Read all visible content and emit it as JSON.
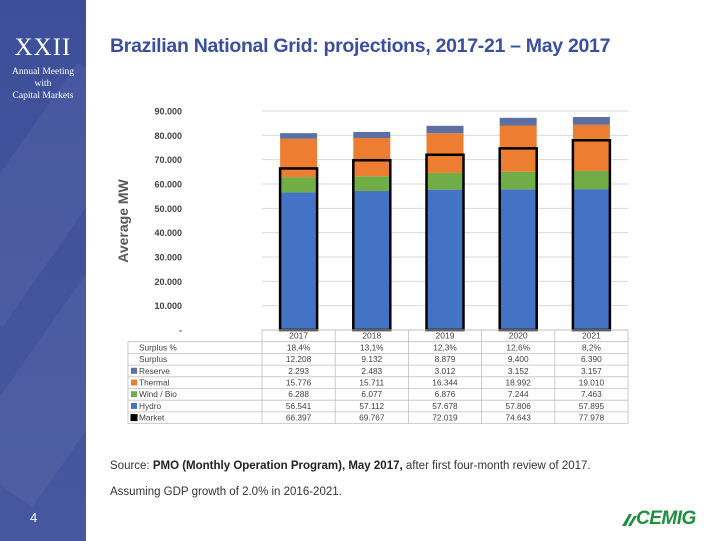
{
  "sidebar": {
    "roman": "XXII",
    "meeting_line1": "Annual Meeting",
    "meeting_line2": "with",
    "meeting_line3": "Capital Markets",
    "page_number": "4"
  },
  "title": "Brazilian National Grid: projections, 2017-21 – May 2017",
  "source": {
    "prefix": "Source: ",
    "bold": "PMO (Monthly Operation Program), May 2017,",
    "suffix": " after first four-month review of 2017."
  },
  "assumption": "Assuming GDP growth of 2.0% in 2016-2021.",
  "logo_text": "CEMIG",
  "colors": {
    "hydro": "#4472c4",
    "wind_bio": "#70ad47",
    "thermal": "#ed7d31",
    "reserve": "#5b6fa3",
    "market": "#000000",
    "title": "#3b4fa0",
    "sidebar": "#3e4f9a",
    "logo": "#1e8f3f"
  },
  "chart_data": {
    "type": "bar",
    "stacked": true,
    "ylabel": "Average MW",
    "ylim": [
      0,
      90000
    ],
    "yticks": [
      "-",
      "10.000",
      "20.000",
      "30.000",
      "40.000",
      "50.000",
      "60.000",
      "70.000",
      "80.000",
      "90.000"
    ],
    "grid": true,
    "categories": [
      "2017",
      "2018",
      "2019",
      "2020",
      "2021"
    ],
    "series": [
      {
        "name": "Hydro",
        "values": [
          56541,
          57112,
          57678,
          57806,
          57895
        ]
      },
      {
        "name": "Wind / Bio",
        "values": [
          6288,
          6077,
          6876,
          7244,
          7463
        ]
      },
      {
        "name": "Thermal",
        "values": [
          15776,
          15711,
          16344,
          18992,
          19010
        ]
      },
      {
        "name": "Reserve",
        "values": [
          2293,
          2483,
          3012,
          3152,
          3157
        ]
      }
    ],
    "market_line": {
      "name": "Market",
      "values": [
        66397,
        69767,
        72019,
        74643,
        77978
      ]
    },
    "table": {
      "header": [
        "2017",
        "2018",
        "2019",
        "2020",
        "2021"
      ],
      "rows": [
        {
          "label": "Surplus %",
          "swatch": "",
          "cells": [
            "18,4%",
            "13,1%",
            "12,3%",
            "12,6%",
            "8,2%"
          ]
        },
        {
          "label": "Surplus",
          "swatch": "",
          "cells": [
            "12.208",
            "9.132",
            "8.879",
            "9.400",
            "6.390"
          ]
        },
        {
          "label": "Reserve",
          "swatch": "reserve",
          "cells": [
            "2.293",
            "2.483",
            "3.012",
            "3.152",
            "3.157"
          ]
        },
        {
          "label": "Thermal",
          "swatch": "thermal",
          "cells": [
            "15.776",
            "15.711",
            "16.344",
            "18.992",
            "19.010"
          ]
        },
        {
          "label": "Wind / Bio",
          "swatch": "wind_bio",
          "cells": [
            "6.288",
            "6.077",
            "6.876",
            "7.244",
            "7.463"
          ]
        },
        {
          "label": "Hydro",
          "swatch": "hydro",
          "cells": [
            "56.541",
            "57.112",
            "57.678",
            "57.806",
            "57.895"
          ]
        },
        {
          "label": "Market",
          "swatch": "market",
          "cells": [
            "66.397",
            "69.767",
            "72.019",
            "74.643",
            "77.978"
          ]
        }
      ]
    }
  }
}
